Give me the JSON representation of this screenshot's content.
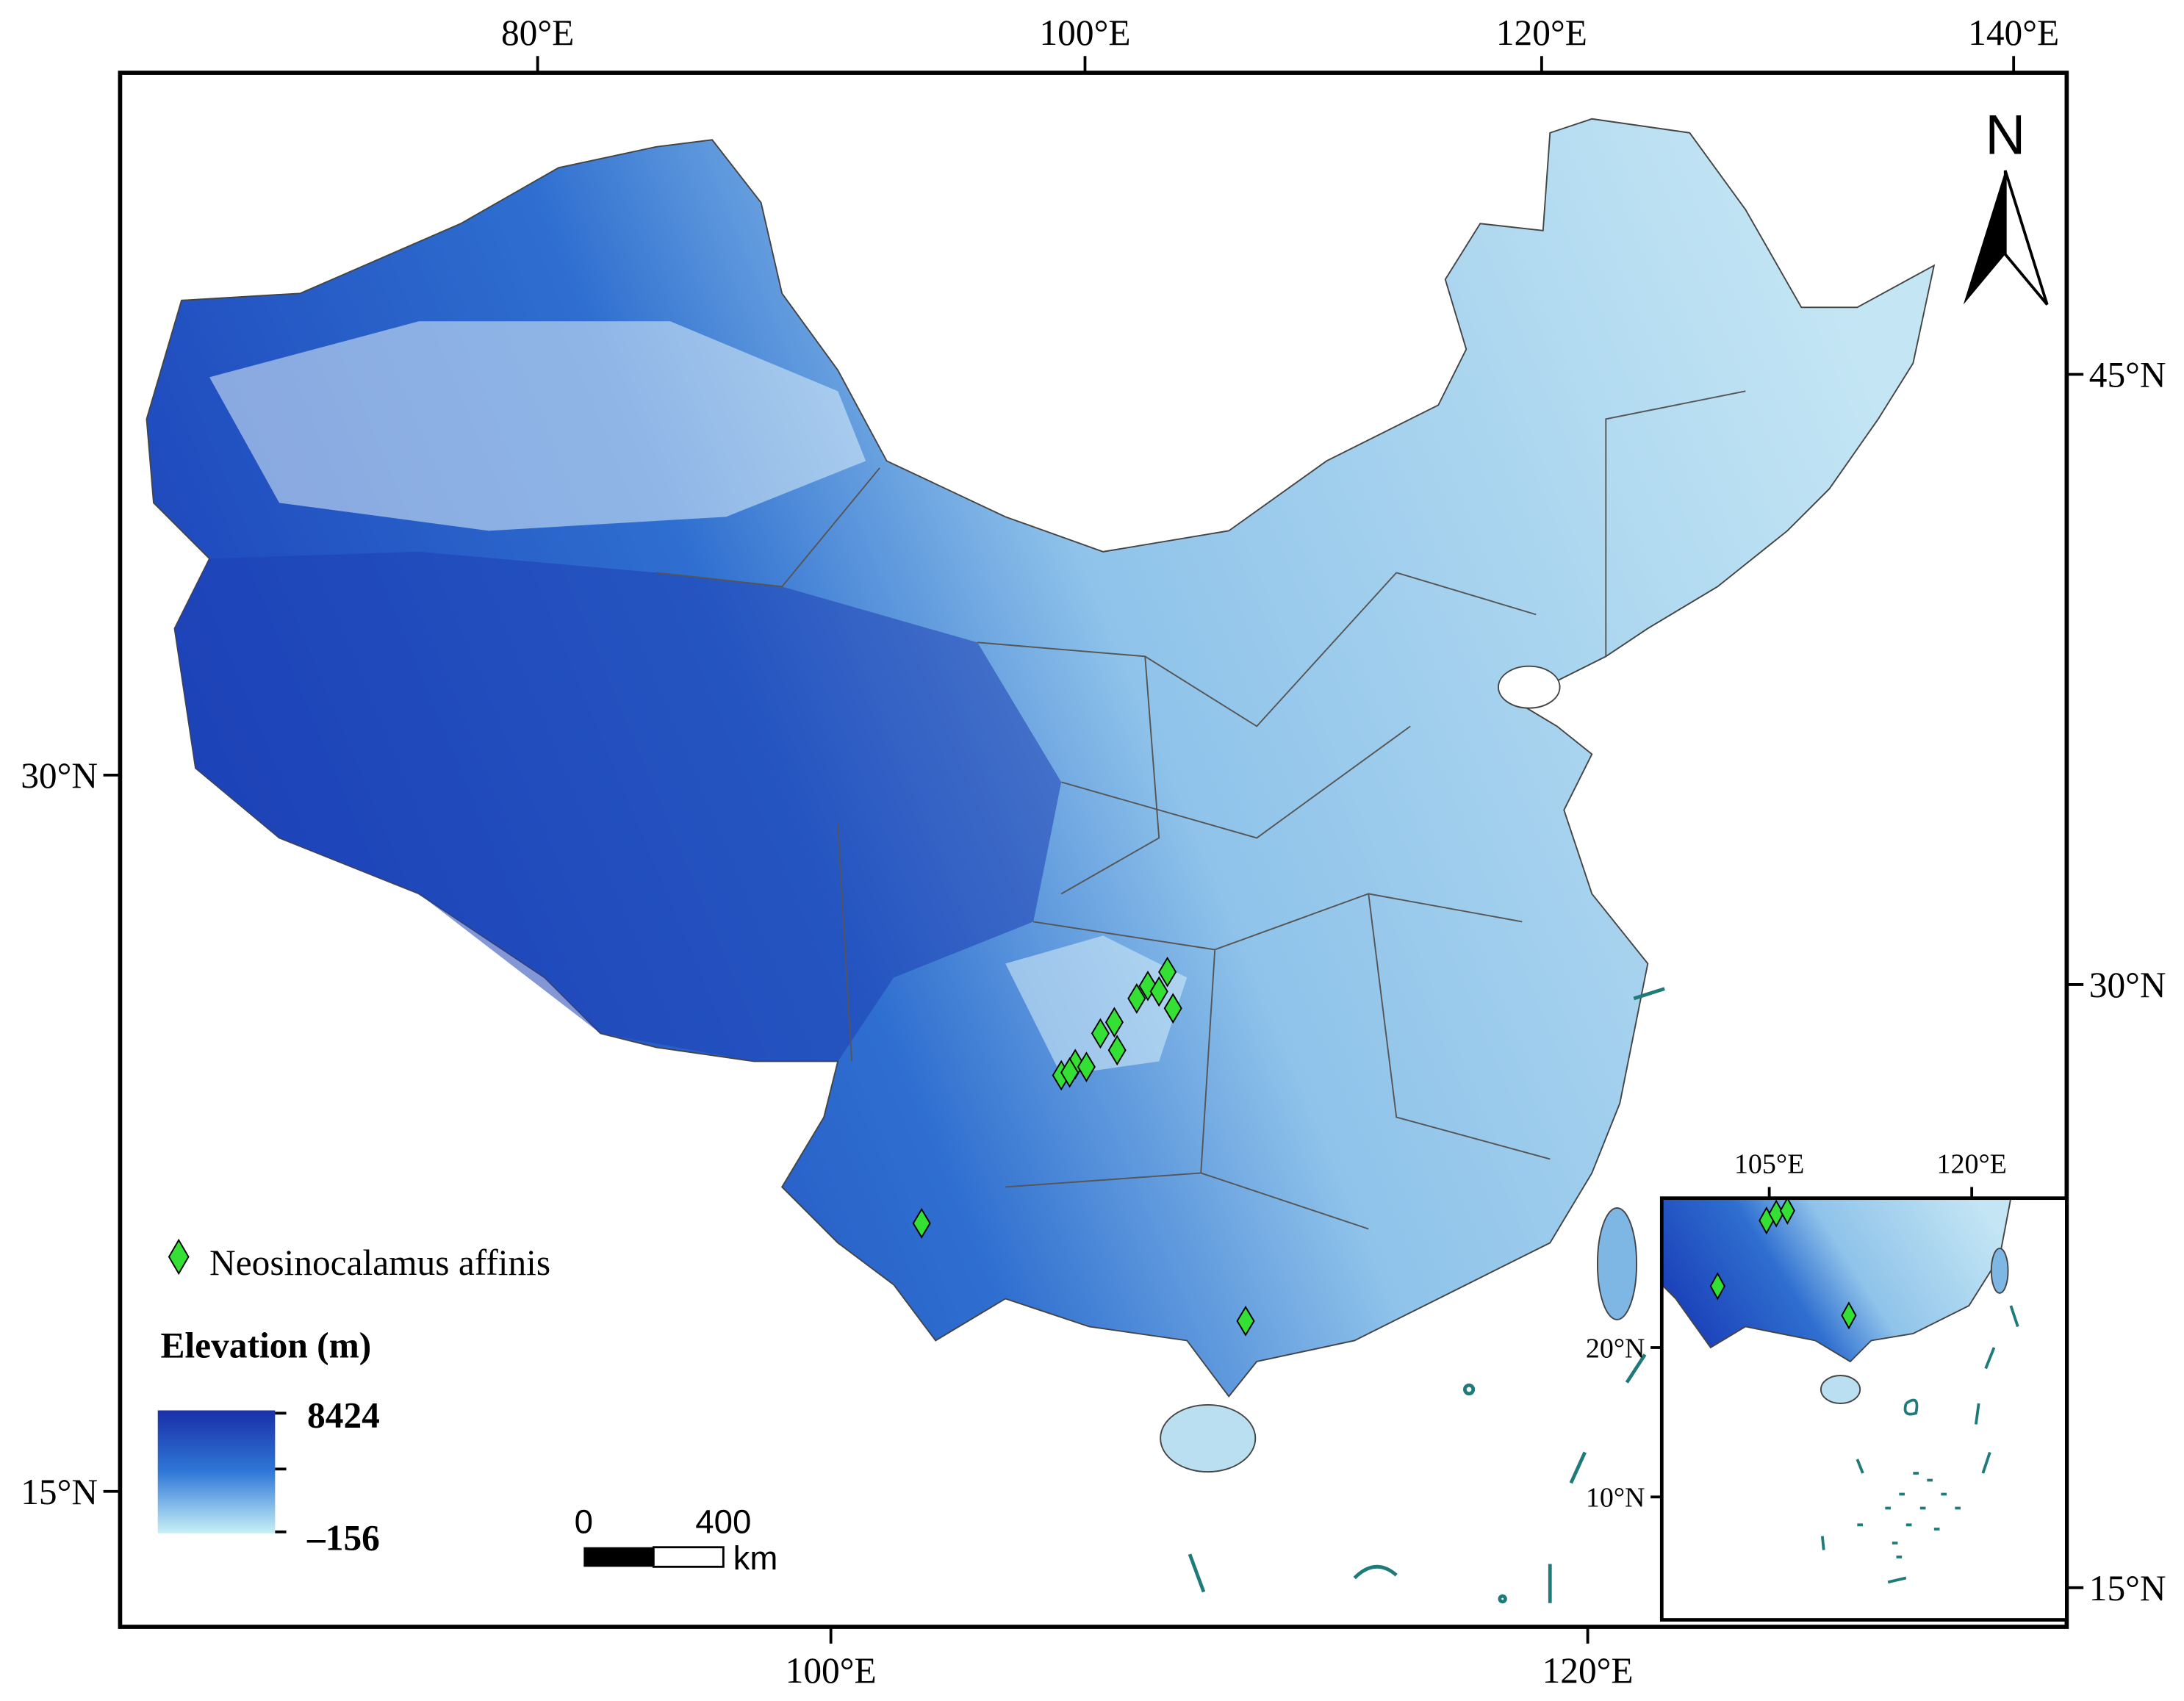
{
  "top_axis": {
    "labels": [
      "80°E",
      "100°E",
      "120°E",
      "140°E"
    ]
  },
  "bottom_axis": {
    "labels": [
      "100°E",
      "120°E"
    ]
  },
  "left_axis": {
    "labels": [
      "30°N",
      "15°N"
    ]
  },
  "right_axis": {
    "labels": [
      "45°N",
      "30°N",
      "15°N"
    ]
  },
  "north_arrow": {
    "label": "N"
  },
  "legend": {
    "species": "Neosinocalamus affinis",
    "elevation_title": "Elevation (m)",
    "max_label": "8424",
    "min_label": "–156"
  },
  "scale_bar": {
    "labels": [
      "0",
      "400"
    ],
    "unit": "km"
  },
  "inset": {
    "x_labels": [
      "105°E",
      "120°E"
    ],
    "y_labels": [
      "20°N",
      "10°N"
    ]
  }
}
